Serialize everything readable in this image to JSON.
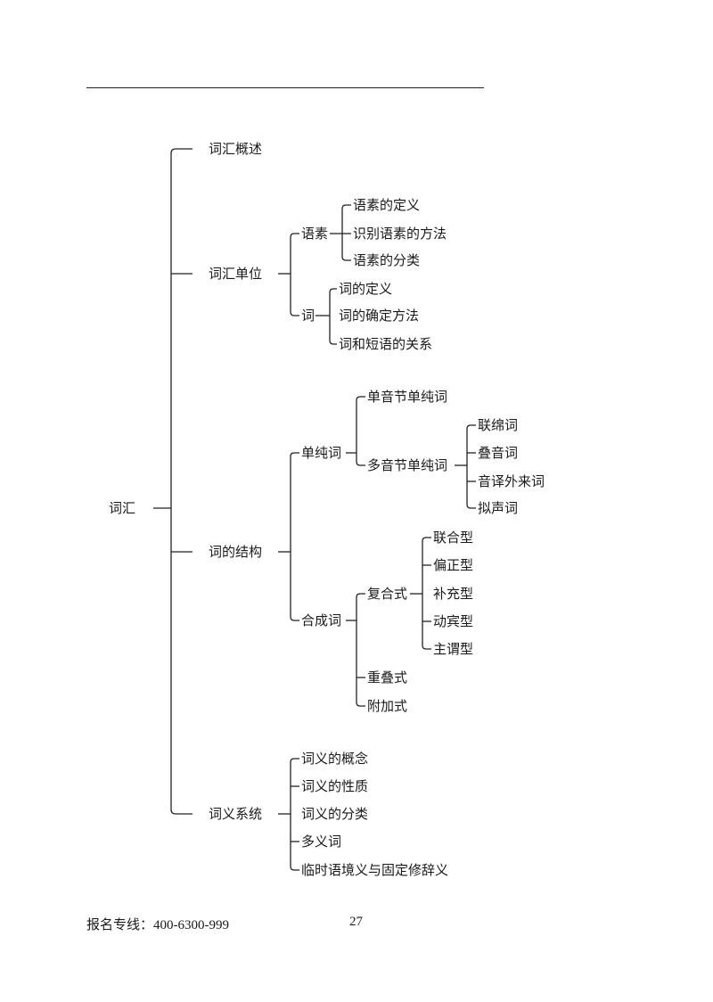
{
  "diagram": {
    "root": "词汇",
    "overview": "词汇概述",
    "unit": {
      "label": "词汇单位",
      "morpheme": {
        "label": "语素",
        "items": [
          "语素的定义",
          "识别语素的方法",
          "语素的分类"
        ]
      },
      "word": {
        "label": "词",
        "items": [
          "词的定义",
          "词的确定方法",
          "词和短语的关系"
        ]
      }
    },
    "structure": {
      "label": "词的结构",
      "simple": {
        "label": "单纯词",
        "mono": "单音节单纯词",
        "poly": {
          "label": "多音节单纯词",
          "items": [
            "联绵词",
            "叠音词",
            "音译外来词",
            "拟声词"
          ]
        }
      },
      "compound": {
        "label": "合成词",
        "complex": {
          "label": "复合式",
          "items": [
            "联合型",
            "偏正型",
            "补充型",
            "动宾型",
            "主谓型"
          ]
        },
        "reduplication": "重叠式",
        "affixation": "附加式"
      }
    },
    "meaning": {
      "label": "词义系统",
      "items": [
        "词义的概念",
        "词义的性质",
        "词义的分类",
        "多义词",
        "临时语境义与固定修辞义"
      ]
    }
  },
  "footer": {
    "label": "报名专线：",
    "phone": "400-6300-999"
  },
  "page_number": "27"
}
